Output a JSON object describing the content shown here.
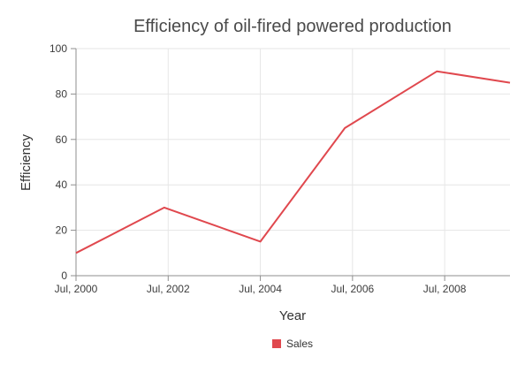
{
  "chart_data": {
    "type": "line",
    "title": "Efficiency of oil-fired powered production",
    "xlabel": "Year",
    "ylabel": "Efficiency",
    "x_ticks": [
      "Jul, 2000",
      "Jul, 2002",
      "Jul, 2004",
      "Jul, 2006",
      "Jul, 2008"
    ],
    "y_ticks": [
      "0",
      "20",
      "40",
      "60",
      "80",
      "100"
    ],
    "ylim": [
      0,
      100
    ],
    "xlim": [
      "2000-07",
      "2009-12"
    ],
    "grid": true,
    "legend_position": "bottom",
    "series": [
      {
        "name": "Sales",
        "color": "#e0484e",
        "x": [
          "2000-07",
          "2002-06",
          "2004-07",
          "2006-05",
          "2008-05",
          "2009-12"
        ],
        "y": [
          10,
          30,
          15,
          65,
          90,
          85
        ]
      }
    ]
  }
}
